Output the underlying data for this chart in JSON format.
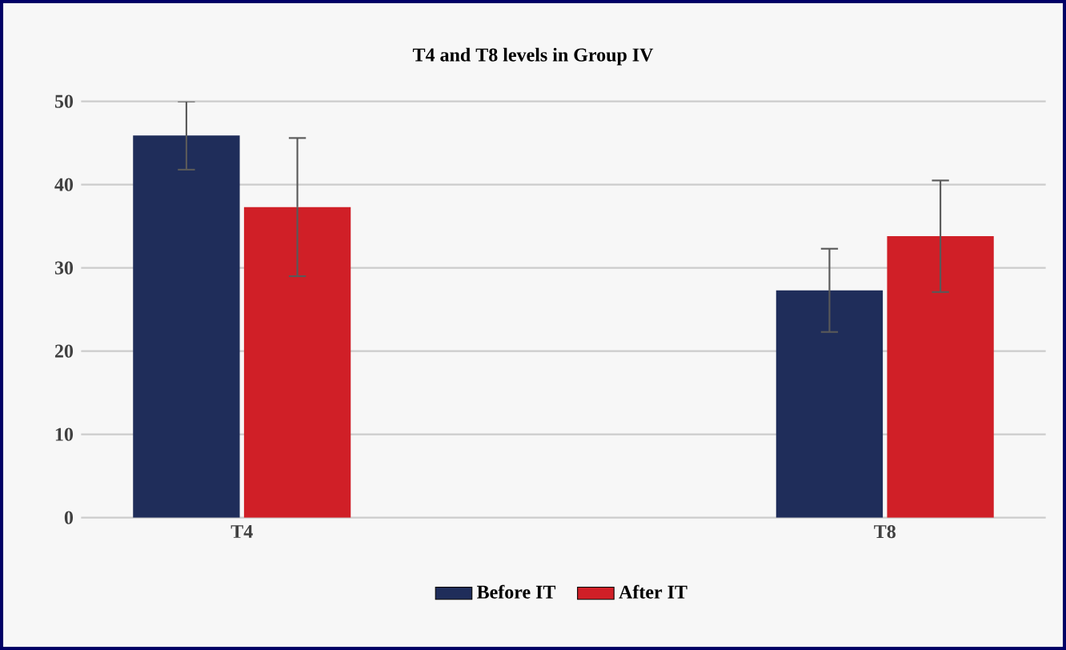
{
  "chart_data": {
    "type": "bar",
    "title": "T4 and T8 levels in Group IV",
    "categories": [
      "T4",
      "T8"
    ],
    "series": [
      {
        "name": "Before IT",
        "color": "#1f2d5a",
        "values": [
          45.9,
          27.3
        ],
        "errors": [
          4.1,
          5.0
        ]
      },
      {
        "name": "After IT",
        "color": "#d01f27",
        "values": [
          37.3,
          33.8
        ],
        "errors": [
          8.3,
          6.7
        ]
      }
    ],
    "ylim": [
      0,
      50
    ],
    "yticks": [
      0,
      10,
      20,
      30,
      40,
      50
    ],
    "grid": "y",
    "legend": "bottom"
  }
}
